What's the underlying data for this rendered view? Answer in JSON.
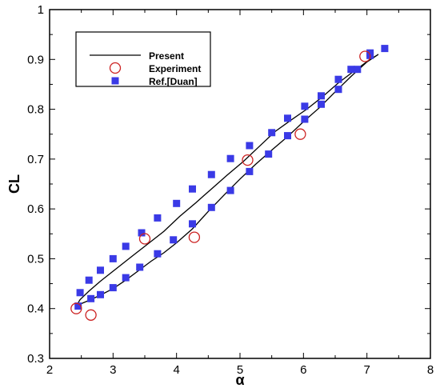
{
  "chart_data": {
    "type": "line",
    "xlabel": "α",
    "ylabel": "CL",
    "xlim": [
      2,
      8
    ],
    "ylim": [
      0.3,
      1.0
    ],
    "x_ticks": [
      "2",
      "3",
      "4",
      "5",
      "6",
      "7",
      "8"
    ],
    "y_ticks": [
      "0.3",
      "0.4",
      "0.5",
      "0.6",
      "0.7",
      "0.8",
      "0.9",
      "1"
    ],
    "grid": false,
    "legend_position": "top-left",
    "series": [
      {
        "name": "Present",
        "style": "line",
        "color": "#000000",
        "x": [
          2.42,
          2.5,
          2.65,
          2.8,
          3.0,
          3.2,
          3.4,
          3.6,
          3.8,
          4.0,
          4.25,
          4.5,
          4.75,
          5.0,
          5.25,
          5.5,
          5.75,
          6.0,
          6.25,
          6.5,
          6.75,
          7.0,
          7.18,
          7.05,
          6.8,
          6.55,
          6.3,
          6.05,
          5.8,
          5.55,
          5.3,
          5.05,
          4.8,
          4.55,
          4.3,
          4.05,
          3.8,
          3.55,
          3.3,
          3.05,
          2.8,
          2.62,
          2.48,
          2.42
        ],
        "y": [
          0.405,
          0.41,
          0.418,
          0.427,
          0.44,
          0.457,
          0.476,
          0.495,
          0.512,
          0.532,
          0.56,
          0.595,
          0.628,
          0.66,
          0.69,
          0.718,
          0.745,
          0.775,
          0.803,
          0.835,
          0.866,
          0.895,
          0.91,
          0.9,
          0.877,
          0.853,
          0.825,
          0.8,
          0.778,
          0.755,
          0.725,
          0.695,
          0.668,
          0.64,
          0.612,
          0.585,
          0.555,
          0.53,
          0.505,
          0.48,
          0.455,
          0.435,
          0.418,
          0.405
        ]
      },
      {
        "name": "Experiment",
        "style": "circle",
        "color": "#cc2222",
        "x": [
          2.42,
          2.65,
          3.5,
          4.28,
          5.12,
          5.95,
          6.97
        ],
        "y": [
          0.4,
          0.387,
          0.54,
          0.543,
          0.698,
          0.75,
          0.906
        ]
      },
      {
        "name": "Ref.[Duan]",
        "style": "square",
        "color": "#3a3ae6",
        "x": [
          2.45,
          2.65,
          2.8,
          3.0,
          3.2,
          3.42,
          3.7,
          3.95,
          4.25,
          4.55,
          4.85,
          5.15,
          5.45,
          5.75,
          6.02,
          6.28,
          6.55,
          6.85,
          7.05,
          7.28,
          2.48,
          2.62,
          2.8,
          3.0,
          3.2,
          3.45,
          3.7,
          4.0,
          4.25,
          4.55,
          4.85,
          5.15,
          5.5,
          5.75,
          6.02,
          6.28,
          6.55,
          6.75,
          7.05
        ],
        "y": [
          0.405,
          0.42,
          0.428,
          0.442,
          0.462,
          0.483,
          0.51,
          0.538,
          0.57,
          0.603,
          0.637,
          0.675,
          0.71,
          0.747,
          0.78,
          0.81,
          0.84,
          0.88,
          0.913,
          0.922,
          0.432,
          0.457,
          0.477,
          0.5,
          0.525,
          0.552,
          0.582,
          0.611,
          0.64,
          0.669,
          0.701,
          0.727,
          0.753,
          0.782,
          0.806,
          0.827,
          0.86,
          0.88,
          0.908
        ]
      }
    ]
  }
}
